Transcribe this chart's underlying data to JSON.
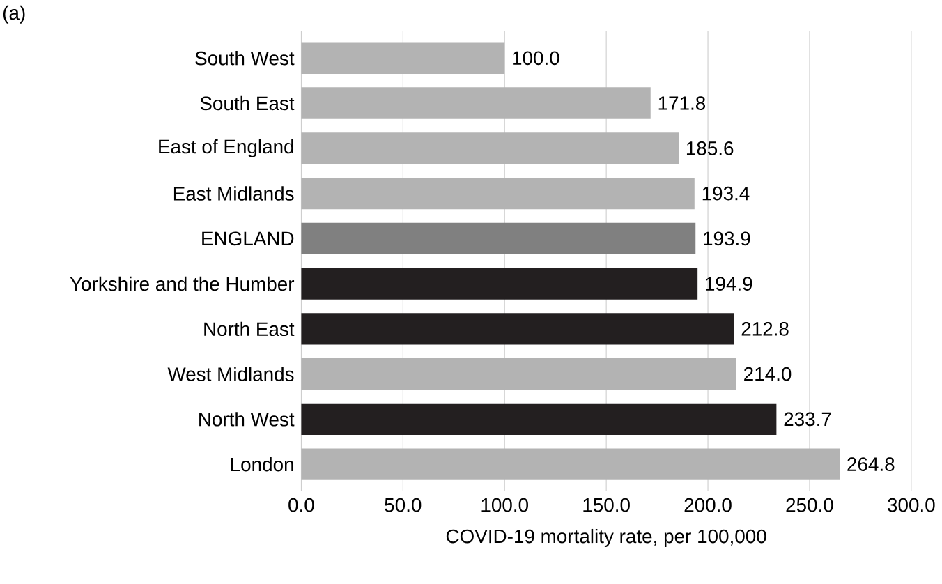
{
  "chart_data": {
    "type": "bar",
    "orientation": "horizontal",
    "title": "(a)",
    "xlabel": "COVID-19 mortality rate, per 100,000",
    "categories": [
      "South West",
      "South East",
      "East of England",
      "East Midlands",
      "ENGLAND",
      "Yorkshire and the Humber",
      "North East",
      "West Midlands",
      "North West",
      "London"
    ],
    "values": [
      100.0,
      171.8,
      185.6,
      193.4,
      193.9,
      194.9,
      212.8,
      214.0,
      233.7,
      264.8
    ],
    "value_labels": [
      "100.0",
      "171.8",
      "185.6",
      "193.4",
      "193.9",
      "194.9",
      "212.8",
      "214.0",
      "233.7",
      "264.8"
    ],
    "colors": [
      "#b3b3b3",
      "#b3b3b3",
      "#b3b3b3",
      "#b3b3b3",
      "#808080",
      "#231f20",
      "#231f20",
      "#b3b3b3",
      "#231f20",
      "#b3b3b3"
    ],
    "xlim": [
      0,
      300
    ],
    "xticks": [
      {
        "value": 0,
        "label": "0.0"
      },
      {
        "value": 50,
        "label": "50.0"
      },
      {
        "value": 100,
        "label": "100.0"
      },
      {
        "value": 150,
        "label": "150.0"
      },
      {
        "value": 200,
        "label": "200.0"
      },
      {
        "value": 250,
        "label": "250.0"
      },
      {
        "value": 300,
        "label": "300.0"
      }
    ],
    "grid": "x"
  }
}
